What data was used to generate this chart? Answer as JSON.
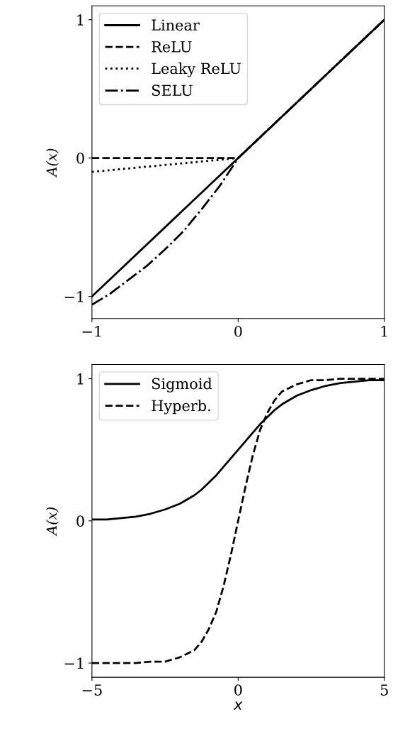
{
  "chart_data": [
    {
      "type": "line",
      "ylabel": "A(x)",
      "xlim": [
        -1,
        1
      ],
      "ylim": [
        -1.16,
        1.1
      ],
      "xticks": [
        {
          "value": -1,
          "label": "−1"
        },
        0,
        1
      ],
      "yticks": [
        {
          "value": -1,
          "label": "−1"
        },
        0,
        1
      ],
      "legend": "top left",
      "grid": false,
      "series": [
        {
          "name": "Linear",
          "color": "#000000",
          "line_style": "solid",
          "x": [
            -1,
            1
          ],
          "values": [
            -1,
            1
          ]
        },
        {
          "name": "ReLU",
          "color": "#000000",
          "line_style": "dashed",
          "x": [
            -1,
            0,
            1
          ],
          "values": [
            0,
            0,
            1
          ]
        },
        {
          "name": "Leaky ReLU",
          "color": "#000000",
          "line_style": "dotted",
          "x": [
            -1,
            0,
            1
          ],
          "values": [
            -0.1,
            0,
            1
          ]
        },
        {
          "name": "SELU",
          "color": "#000000",
          "line_style": "dashdot",
          "x": [
            -1,
            -0.875,
            -0.75,
            -0.625,
            -0.5,
            -0.375,
            -0.25,
            -0.125,
            0,
            1
          ],
          "values": [
            -1.06,
            -0.98,
            -0.88,
            -0.78,
            -0.66,
            -0.53,
            -0.37,
            -0.2,
            0,
            1
          ]
        }
      ]
    },
    {
      "type": "line",
      "xlabel": "x",
      "ylabel": "A(x)",
      "xlim": [
        -5,
        5
      ],
      "ylim": [
        -1.1,
        1.1
      ],
      "xticks": [
        {
          "value": -5,
          "label": "−5"
        },
        0,
        5
      ],
      "yticks": [
        {
          "value": -1,
          "label": "−1"
        },
        0,
        1
      ],
      "legend": "top left",
      "grid": false,
      "series": [
        {
          "name": "Sigmoid",
          "color": "#000000",
          "line_style": "solid",
          "x": [
            -5,
            -4.5,
            -4,
            -3.5,
            -3,
            -2.5,
            -2,
            -1.5,
            -1.25,
            -1,
            -0.75,
            -0.5,
            -0.25,
            0,
            0.25,
            0.5,
            0.75,
            1,
            1.25,
            1.5,
            2,
            2.5,
            3,
            3.5,
            4,
            4.5,
            5
          ],
          "values": [
            0.01,
            0.01,
            0.02,
            0.03,
            0.05,
            0.08,
            0.12,
            0.18,
            0.22,
            0.27,
            0.32,
            0.38,
            0.44,
            0.5,
            0.56,
            0.62,
            0.68,
            0.73,
            0.78,
            0.82,
            0.88,
            0.92,
            0.95,
            0.97,
            0.98,
            0.99,
            0.99
          ]
        },
        {
          "name": "Hyperb.",
          "color": "#000000",
          "line_style": "dashed",
          "x": [
            -5,
            -4.5,
            -4,
            -3.5,
            -3,
            -2.5,
            -2,
            -1.5,
            -1.25,
            -1,
            -0.75,
            -0.5,
            -0.25,
            0,
            0.25,
            0.5,
            0.75,
            1,
            1.25,
            1.5,
            2,
            2.5,
            3,
            3.5,
            4,
            4.5,
            5
          ],
          "values": [
            -1,
            -1,
            -1,
            -1,
            -0.99,
            -0.99,
            -0.96,
            -0.91,
            -0.85,
            -0.76,
            -0.64,
            -0.46,
            -0.24,
            0,
            0.24,
            0.46,
            0.64,
            0.76,
            0.85,
            0.91,
            0.96,
            0.99,
            0.99,
            1,
            1,
            1,
            1
          ]
        }
      ]
    }
  ]
}
